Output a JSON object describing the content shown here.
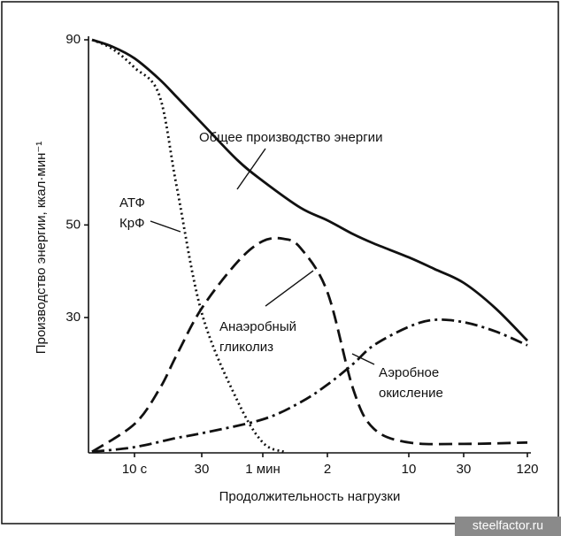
{
  "chart_data": {
    "type": "line",
    "ylabel": "Производство энергии, ккал·мин⁻¹",
    "xlabel": "Продолжительность нагрузки",
    "xscale": "log",
    "xlim": [
      5,
      7200
    ],
    "xticks": [
      {
        "value": 10,
        "label": "10 с"
      },
      30,
      {
        "value": 60,
        "label": "1 мин"
      },
      {
        "value": 120,
        "label": "2"
      },
      {
        "value": 600,
        "label": "10"
      },
      {
        "value": 1800,
        "label": "30"
      },
      {
        "value": 7200,
        "label": "120"
      }
    ],
    "ylim": [
      0,
      90
    ],
    "yticks": [
      30,
      50,
      90
    ],
    "series": [
      {
        "style": "solid",
        "color": "#111111",
        "x": [
          5,
          7,
          10,
          15,
          20,
          30,
          45,
          60,
          90,
          120,
          200,
          300,
          600,
          1000,
          1800,
          3600,
          7200
        ],
        "values": [
          90,
          88.5,
          86,
          81.5,
          77.6,
          72,
          64,
          59.5,
          53.7,
          51,
          48,
          46,
          43,
          40.5,
          37.5,
          32,
          25
        ]
      },
      {
        "style": "dotted",
        "color": "#111111",
        "x": [
          5,
          7,
          10,
          15,
          20,
          30,
          45,
          60,
          75
        ],
        "values": [
          90,
          88,
          84,
          78,
          58,
          31,
          12,
          3,
          1
        ]
      },
      {
        "style": "dashed",
        "color": "#111111",
        "x": [
          5,
          10,
          15,
          20,
          30,
          45,
          60,
          75,
          90,
          120,
          200,
          300,
          600,
          1800,
          7200
        ],
        "values": [
          1,
          7,
          14.5,
          22,
          32,
          42,
          46.5,
          47,
          45,
          35.5,
          14.5,
          6,
          3,
          2.7,
          3
        ]
      },
      {
        "style": "dashdot",
        "color": "#111111",
        "x": [
          5,
          10,
          20,
          30,
          60,
          90,
          120,
          200,
          300,
          600,
          1000,
          1800,
          3600,
          7200
        ],
        "values": [
          1,
          2,
          4,
          5,
          8,
          11.7,
          15.5,
          20,
          24,
          28,
          29.5,
          29,
          27,
          24
        ]
      }
    ],
    "annotations": [
      {
        "lines": [
          "Общее производство энергии"
        ]
      },
      {
        "lines": [
          "АТФ",
          "КрФ"
        ]
      },
      {
        "lines": [
          "Анаэробный",
          "гликолиз"
        ]
      },
      {
        "lines": [
          "Аэробное",
          "окисление"
        ]
      }
    ]
  },
  "watermark": "steelfactor.ru"
}
